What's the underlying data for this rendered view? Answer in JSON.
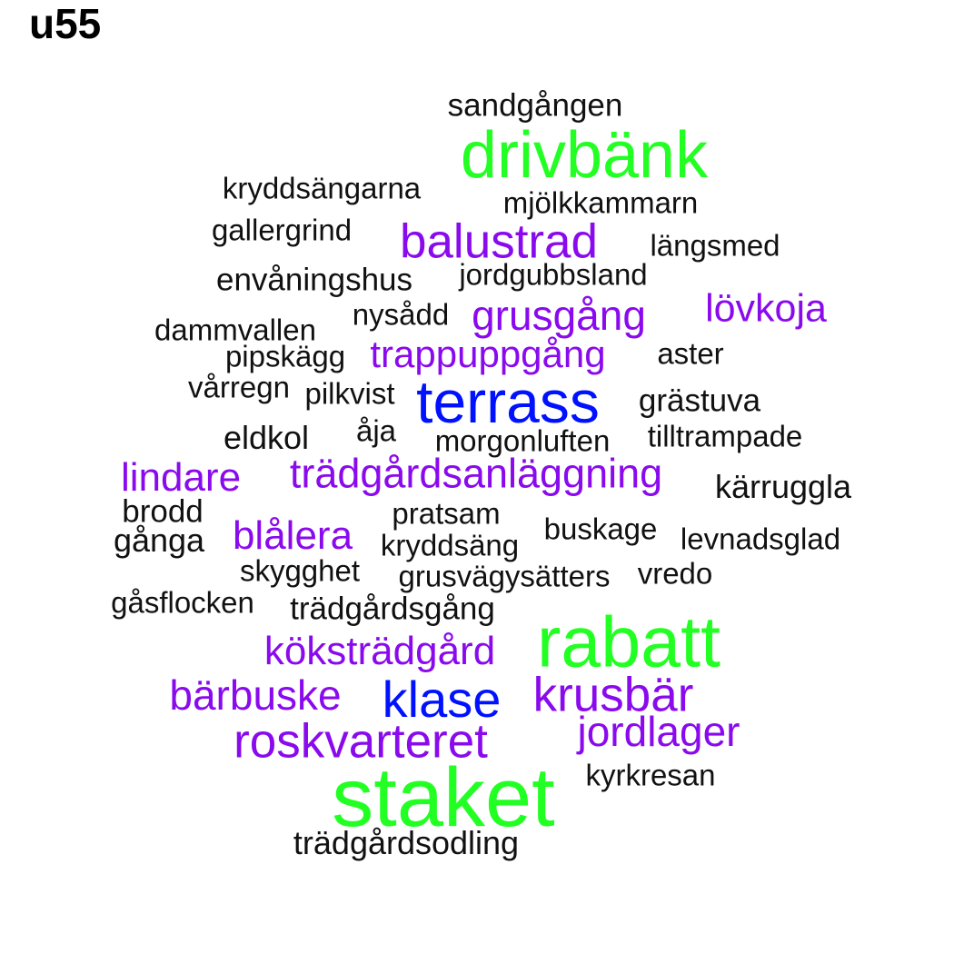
{
  "title": "u55",
  "colors": {
    "green": "#22ff22",
    "blue": "#0011ff",
    "purple": "#8a0aee",
    "black": "#111111"
  },
  "words": [
    "sandgången",
    "drivbänk",
    "kryddsängarna",
    "mjölkkammarn",
    "gallergrind",
    "balustrad",
    "längsmed",
    "envåningshus",
    "jordgubbsland",
    "lövkoja",
    "nysådd",
    "grusgång",
    "dammvallen",
    "pipskägg",
    "trappuppgång",
    "aster",
    "vårregn",
    "pilkvist",
    "terrass",
    "grästuva",
    "eldkol",
    "åja",
    "morgonluften",
    "tilltrampade",
    "lindare",
    "trädgårdsanläggning",
    "kärruggla",
    "brodd",
    "pratsam",
    "gånga",
    "blålera",
    "buskage",
    "kryddsäng",
    "levnadsglad",
    "skygghet",
    "grusvägysätters",
    "vredo",
    "gåsflocken",
    "trädgårdsgång",
    "rabatt",
    "köksträdgård",
    "bärbuske",
    "klase",
    "krusbär",
    "jordlager",
    "roskvarteret",
    "kyrkresan",
    "staket",
    "trädgårdsodling"
  ]
}
